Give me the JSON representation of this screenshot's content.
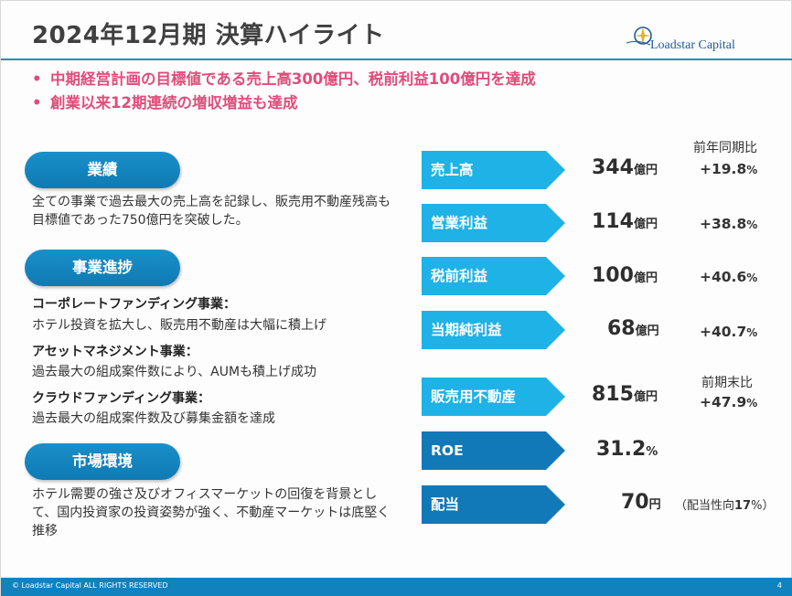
{
  "header": {
    "title": "2024年12月期 決算ハイライト",
    "logo_text": "Loadstar Capital"
  },
  "highlights": [
    "中期経営計画の目標値である売上高300億円、税前利益100億円を達成",
    "創業以来12期連続の増収増益も達成"
  ],
  "sections": {
    "performance": {
      "label": "業績",
      "text": "全ての事業で過去最大の売上高を記録し、販売用不動産残高も目標値であった750億円を突破した。"
    },
    "progress": {
      "label": "事業進捗",
      "items": [
        {
          "title": "コーポレートファンディング事業：",
          "text": "ホテル投資を拡大し、販売用不動産は大幅に積上げ"
        },
        {
          "title": "アセットマネジメント事業：",
          "text": "過去最大の組成案件数により、AUMも積上げ成功"
        },
        {
          "title": "クラウドファンディング事業：",
          "text": "過去最大の組成案件数及び募集金額を達成"
        }
      ]
    },
    "market": {
      "label": "市場環境",
      "text": "ホテル需要の強さ及びオフィスマーケットの回復を背景として、国内投資家の投資姿勢が強く、不動産マーケットは底堅く推移"
    }
  },
  "metrics": {
    "yoy_header": "前年同期比",
    "prior_end_header": "前期末比",
    "rows": [
      {
        "label": "売上高",
        "value": "344",
        "unit": "億円",
        "growth": "+19.8",
        "pct": "%"
      },
      {
        "label": "営業利益",
        "value": "114",
        "unit": "億円",
        "growth": "+38.8",
        "pct": "%"
      },
      {
        "label": "税前利益",
        "value": "100",
        "unit": "億円",
        "growth": "+40.6",
        "pct": "%"
      },
      {
        "label": "当期純利益",
        "value": "68",
        "unit": "億円",
        "growth": "+40.7",
        "pct": "%"
      },
      {
        "label": "販売用不動産",
        "value": "815",
        "unit": "億円",
        "growth": "+47.9",
        "pct": "%"
      },
      {
        "label": "ROE",
        "value": "31.2",
        "unit": "%"
      },
      {
        "label": "配当",
        "value": "70",
        "unit": "円",
        "note_prefix": "（配当性向",
        "note_value": "17",
        "note_suffix": "%）"
      }
    ]
  },
  "footer": {
    "copyright": "© Loadstar Capital ALL RIGHTS RESERVED",
    "page": "4"
  },
  "colors": {
    "accent_blue": "#1282be",
    "arrow_light": "#1fb2e6",
    "arrow_dark": "#1279b8",
    "highlight_pink": "#e24c7a"
  }
}
